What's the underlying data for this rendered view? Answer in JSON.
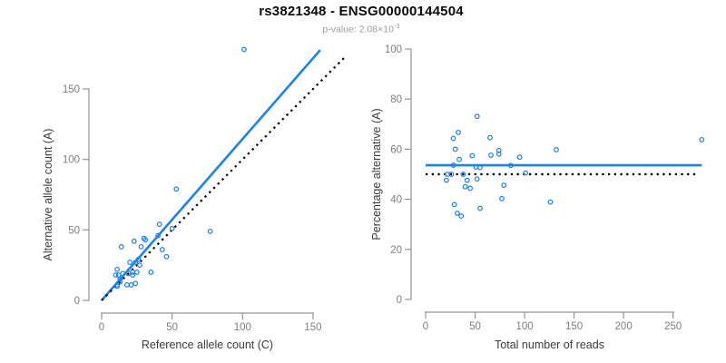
{
  "header": {
    "title": "rs3821348 - ENSG00000144504",
    "subtitle_prefix": "p-value: 2.08×10",
    "subtitle_exponent": "-3"
  },
  "colors": {
    "accent": "#1E82E8",
    "reference_line": "#000000",
    "axis": "#949494",
    "tick_label": "#7E7E7E",
    "axis_label": "#3C3C3C",
    "title": "#0A0A0A",
    "subtitle": "#9A9A9A"
  },
  "chart_data": [
    {
      "type": "scatter",
      "name": "allele-counts-scatter",
      "xlabel": "Reference allele count (C)",
      "ylabel": "Alternative allele count (A)",
      "xticks": [
        0,
        50,
        100,
        150
      ],
      "yticks": [
        0,
        50,
        100,
        150
      ],
      "xlim": [
        0,
        172
      ],
      "ylim": [
        0,
        180
      ],
      "grid": false,
      "points": [
        [
          101,
          178
        ],
        [
          53,
          79
        ],
        [
          77,
          49
        ],
        [
          41,
          54
        ],
        [
          50,
          51
        ],
        [
          40,
          46
        ],
        [
          23,
          42
        ],
        [
          30,
          44
        ],
        [
          31,
          43
        ],
        [
          28,
          38
        ],
        [
          14,
          38
        ],
        [
          43,
          36
        ],
        [
          46,
          31
        ],
        [
          35,
          20
        ],
        [
          11,
          22
        ],
        [
          27,
          25
        ],
        [
          12,
          18
        ],
        [
          10,
          18
        ],
        [
          11,
          11
        ],
        [
          13,
          13
        ],
        [
          13,
          15
        ],
        [
          15,
          19
        ],
        [
          20,
          27
        ],
        [
          24,
          27
        ],
        [
          26,
          29
        ],
        [
          19,
          19
        ],
        [
          22,
          20
        ],
        [
          25,
          20
        ],
        [
          11,
          10
        ],
        [
          22,
          18
        ],
        [
          18,
          11
        ],
        [
          21,
          11
        ],
        [
          24,
          12
        ]
      ],
      "lines": [
        {
          "name": "regression-line",
          "x1": 0,
          "y1": 0,
          "x2": 155,
          "y2": 177.5,
          "style": "solid",
          "color": "#1E82E8",
          "width": 2.6
        },
        {
          "name": "identity-line",
          "x1": 0,
          "y1": 0,
          "x2": 172,
          "y2": 172,
          "style": "dotted",
          "color": "#000000",
          "width": 2.2
        }
      ]
    },
    {
      "type": "scatter",
      "name": "percentage-vs-coverage-scatter",
      "xlabel": "Total number of reads",
      "ylabel": "Percentage alternative (A)",
      "xticks": [
        0,
        50,
        100,
        150,
        200,
        250
      ],
      "yticks": [
        0,
        20,
        40,
        60,
        80,
        100
      ],
      "xlim": [
        0,
        279
      ],
      "ylim": [
        0,
        100
      ],
      "grid": false,
      "points": [
        [
          279,
          63.8
        ],
        [
          132,
          59.8
        ],
        [
          126,
          38.9
        ],
        [
          95,
          56.8
        ],
        [
          101,
          50.5
        ],
        [
          86,
          53.5
        ],
        [
          65,
          64.6
        ],
        [
          74,
          59.5
        ],
        [
          74,
          58.1
        ],
        [
          66,
          57.6
        ],
        [
          52,
          73.1
        ],
        [
          79,
          45.6
        ],
        [
          77,
          40.3
        ],
        [
          55,
          36.4
        ],
        [
          33,
          66.7
        ],
        [
          52,
          48.1
        ],
        [
          30,
          60.0
        ],
        [
          28,
          64.3
        ],
        [
          22,
          50.0
        ],
        [
          26,
          50.0
        ],
        [
          28,
          53.6
        ],
        [
          34,
          55.9
        ],
        [
          47,
          57.4
        ],
        [
          51,
          52.9
        ],
        [
          55,
          52.7
        ],
        [
          38,
          50.0
        ],
        [
          42,
          47.6
        ],
        [
          45,
          44.4
        ],
        [
          21,
          47.6
        ],
        [
          40,
          45.0
        ],
        [
          29,
          37.9
        ],
        [
          32,
          34.4
        ],
        [
          36,
          33.3
        ]
      ],
      "lines": [
        {
          "name": "mean-percentage-line",
          "x1": 0,
          "y1": 53.6,
          "x2": 279,
          "y2": 53.6,
          "style": "solid",
          "color": "#1E82E8",
          "width": 2.6
        },
        {
          "name": "fifty-percent-line",
          "x1": 0,
          "y1": 50,
          "x2": 276,
          "y2": 50,
          "style": "dotted",
          "color": "#000000",
          "width": 2.2
        }
      ]
    }
  ]
}
